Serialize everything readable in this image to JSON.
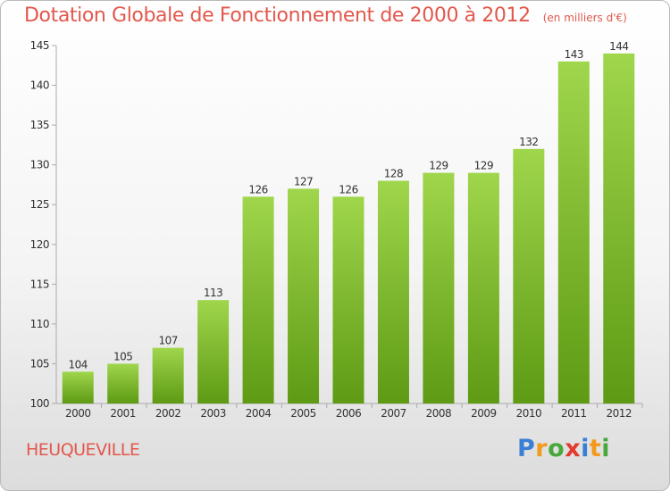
{
  "header": {
    "title": "Dotation Globale de Fonctionnement de 2000 à 2012",
    "unit": "(en milliers d'€)"
  },
  "footer": {
    "commune": "HEUQUEVILLE",
    "logo_letters": [
      "P",
      "r",
      "o",
      "x",
      "i",
      "t",
      "i"
    ],
    "logo_colors": [
      "#3a7fd5",
      "#f29a1b",
      "#49a83c",
      "#e23b2e",
      "#3a7fd5",
      "#f29a1b",
      "#49a83c"
    ]
  },
  "colors": {
    "bar_top": "#9fd64c",
    "bar_bottom": "#5e9a14",
    "title": "#e2584d"
  },
  "chart_data": {
    "type": "bar",
    "categories": [
      "2000",
      "2001",
      "2002",
      "2003",
      "2004",
      "2005",
      "2006",
      "2007",
      "2008",
      "2009",
      "2010",
      "2011",
      "2012"
    ],
    "values": [
      104,
      105,
      107,
      113,
      126,
      127,
      126,
      128,
      129,
      129,
      132,
      143,
      144
    ],
    "ylim": [
      100,
      145
    ],
    "yticks": [
      100,
      105,
      110,
      115,
      120,
      125,
      130,
      135,
      140,
      145
    ],
    "grid": false
  }
}
